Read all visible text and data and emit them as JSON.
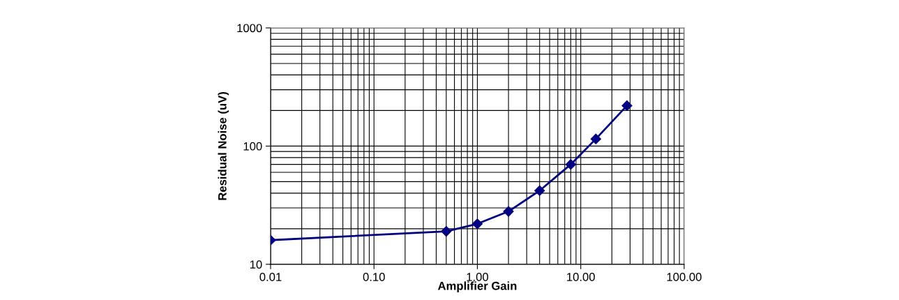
{
  "chart_data": {
    "type": "line",
    "xlabel": "Amplifier Gain",
    "ylabel": "Residual Noise (uV)",
    "log": "xy",
    "x": [
      0.01,
      0.5,
      1,
      2,
      4,
      8,
      14,
      28
    ],
    "series": [
      {
        "color": "#000080",
        "values": [
          16,
          19,
          22,
          28,
          42,
          70,
          115,
          220
        ]
      }
    ],
    "xlim": [
      0.01,
      100
    ],
    "xticks": [
      {
        "value": 0.01,
        "label": "0.01"
      },
      {
        "value": 0.1,
        "label": "0.10"
      },
      {
        "value": 1,
        "label": "1.00"
      },
      {
        "value": 10,
        "label": "10.00"
      },
      {
        "value": 100,
        "label": "100.00"
      }
    ],
    "ylim": [
      10,
      1000
    ],
    "yticks": [
      10,
      100,
      1000
    ],
    "grid": true,
    "marker": "diamond",
    "line_style": "solid",
    "legend": false
  }
}
